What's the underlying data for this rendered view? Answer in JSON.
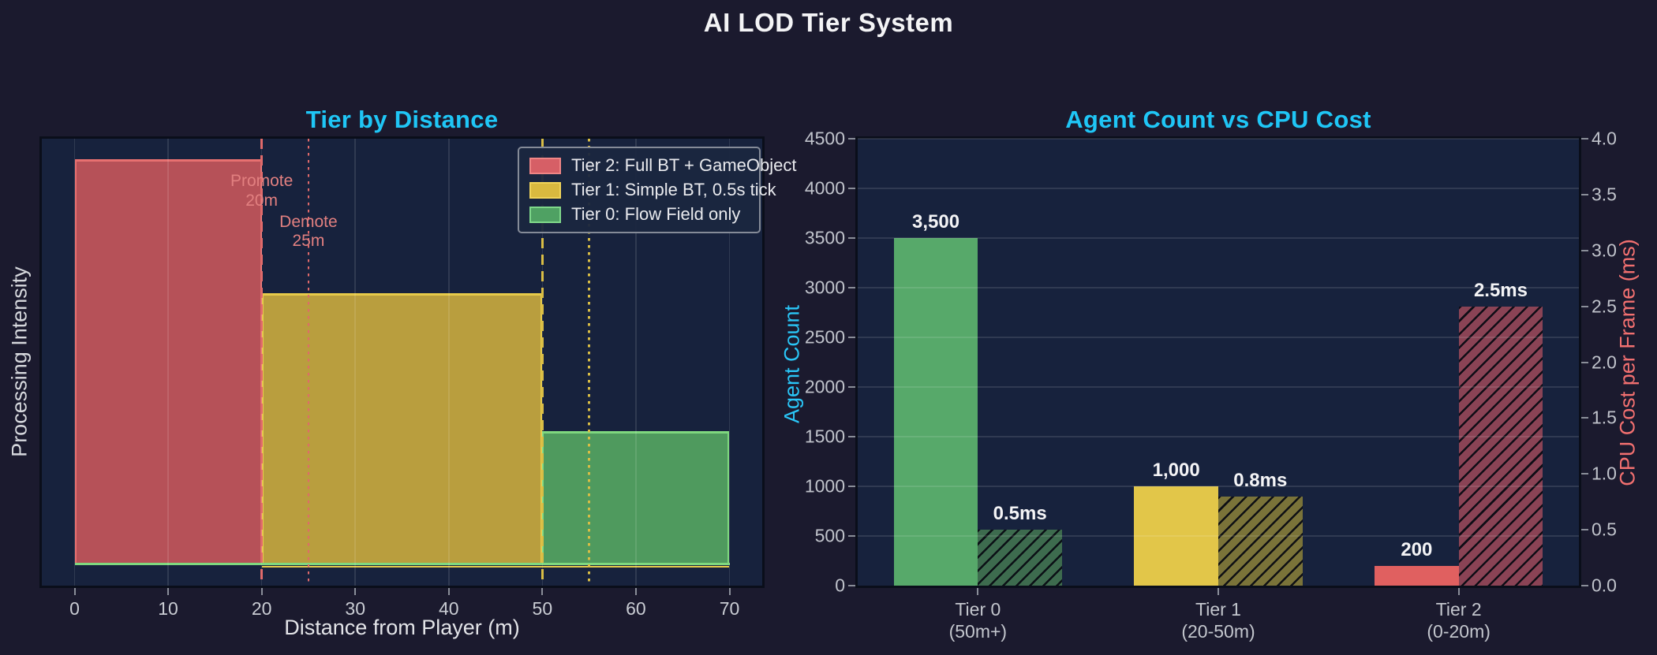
{
  "figure": {
    "title": "AI LOD Tier System"
  },
  "colors": {
    "figure_bg": "#1b1a2e",
    "axes_bg": "#17223d",
    "spine": "#0a0e1a",
    "grid": "rgba(255,255,255,0.11)",
    "title_cyan": "#1fc6f6",
    "tick_gray": "#bfc2ca",
    "tier2_red": "#e06060",
    "tier1_yellow": "#e2c649",
    "tier0_green": "#57a96a",
    "cpu_red_label": "#f27070",
    "agent_cyan_label": "#2ac6f7",
    "annotation_pink": "#e28080"
  },
  "chart_data": [
    {
      "type": "area",
      "title": "Tier by Distance",
      "xlabel": "Distance from Player (m)",
      "ylabel": "Processing Intensity",
      "xlim": [
        -3.5,
        73.5
      ],
      "ylim": [
        -0.05,
        1.05
      ],
      "x_ticks": [
        0,
        10,
        20,
        30,
        40,
        50,
        60,
        70
      ],
      "grid": "vertical",
      "zones": [
        {
          "tier": "tier2",
          "label": "Tier 2: Full BT + GameObject",
          "x_from": 0,
          "x_to": 20,
          "intensity": 1.0,
          "fill": "#b65158",
          "edge": "#e87070"
        },
        {
          "tier": "tier1",
          "label": "Tier 1: Simple BT, 0.5s tick",
          "x_from": 20,
          "x_to": 50,
          "intensity": 0.67,
          "fill": "#b99e3e",
          "edge": "#e7cb4a"
        },
        {
          "tier": "tier0",
          "label": "Tier 0: Flow Field only",
          "x_from": 50,
          "x_to": 70,
          "intensity": 0.33,
          "fill": "#4f9a5e",
          "edge": "#7fd87f"
        }
      ],
      "baselines": [
        {
          "x_from": 20,
          "x_to": 70,
          "color": "#e7cb4a",
          "offset": 2.5,
          "thick": 2.5
        },
        {
          "x_from": 0,
          "x_to": 70,
          "color": "#7fd87f",
          "offset": -1.5,
          "thick": 3.5
        }
      ],
      "thresholds": [
        {
          "x": 20,
          "style": "dashed",
          "color": "#e06a6a",
          "name": "promote-20m-line"
        },
        {
          "x": 25,
          "style": "dotted",
          "color": "#e06a6a",
          "name": "demote-25m-line"
        },
        {
          "x": 50,
          "style": "dashed",
          "color": "#d9bd45",
          "name": "promote-50m-line"
        },
        {
          "x": 55,
          "style": "dotted",
          "color": "#d9bd45",
          "name": "demote-55m-line"
        }
      ],
      "annotations": [
        {
          "name": "annotation-promote-20m",
          "lines": "Promote\n20m",
          "x": 20,
          "y": 0.92,
          "color": "#e28080"
        },
        {
          "name": "annotation-demote-25m",
          "lines": "Demote\n25m",
          "x": 25,
          "y": 0.82,
          "color": "#e28080"
        }
      ],
      "legend": {
        "position": "upper right",
        "items": [
          {
            "label": "Tier 2: Full BT + GameObject",
            "fill": "#d65f66",
            "edge": "#ef8585"
          },
          {
            "label": "Tier 1: Simple BT, 0.5s tick",
            "fill": "#d9b93f",
            "edge": "#f0d45a"
          },
          {
            "label": "Tier 0: Flow Field only",
            "fill": "#4fa163",
            "edge": "#7fd88a"
          }
        ]
      }
    },
    {
      "type": "bar",
      "title": "Agent Count vs CPU Cost",
      "categories": [
        "Tier 0\n(50m+)",
        "Tier 1\n(20-50m)",
        "Tier 2\n(0-20m)"
      ],
      "grid": "horizontal",
      "series": [
        {
          "name": "Agent Count",
          "axis": "left",
          "values": [
            3500,
            1000,
            200
          ],
          "value_labels": [
            "3,500",
            "1,000",
            "200"
          ],
          "colors": [
            "#57a96a",
            "#e2c649",
            "#e06060"
          ],
          "hatch": false
        },
        {
          "name": "CPU Cost",
          "axis": "right",
          "values": [
            0.5,
            0.8,
            2.5
          ],
          "value_labels": [
            "0.5ms",
            "0.8ms",
            "2.5ms"
          ],
          "colors": [
            "#3d6b4e",
            "#7a7339",
            "#8a4355"
          ],
          "hatch": true
        }
      ],
      "left_axis": {
        "label": "Agent Count",
        "min": 0,
        "max": 4500,
        "step": 500,
        "color": "#2ac6f7"
      },
      "right_axis": {
        "label": "CPU Cost per Frame (ms)",
        "min": 0,
        "max": 4,
        "step": 0.5,
        "color": "#f27070"
      }
    }
  ]
}
